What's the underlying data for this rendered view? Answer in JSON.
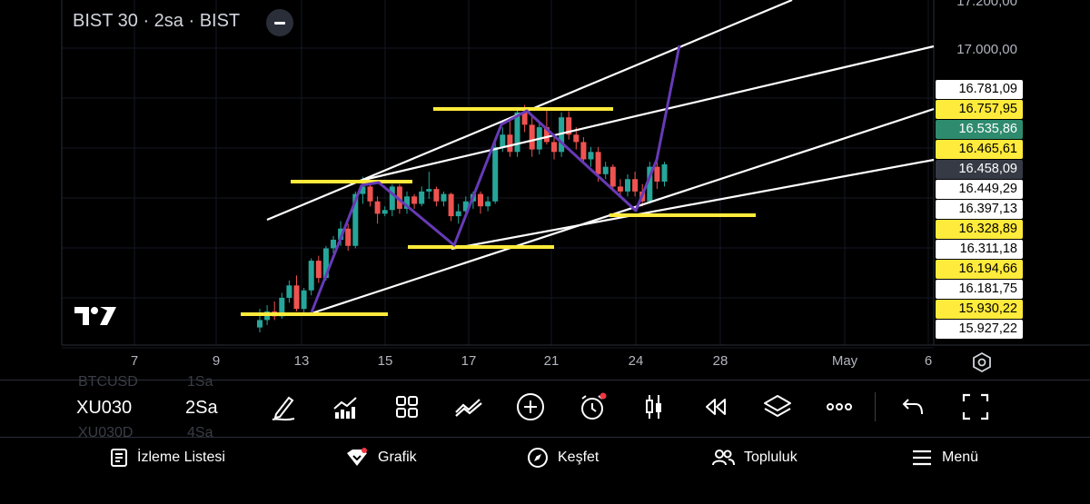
{
  "header": {
    "title": "BIST 30 · 2sa · BIST"
  },
  "price_axis": {
    "top_cut": "17.200,00",
    "level_17000": "17.000,00",
    "labels": [
      {
        "text": "16.781,09",
        "style": "white"
      },
      {
        "text": "16.757,95",
        "style": "yellow"
      },
      {
        "text": "16.535,86",
        "style": "green"
      },
      {
        "text": "16.465,61",
        "style": "yellow"
      },
      {
        "text": "16.458,09",
        "style": "dark"
      },
      {
        "text": "16.449,29",
        "style": "white"
      },
      {
        "text": "16.397,13",
        "style": "white"
      },
      {
        "text": "16.328,89",
        "style": "yellow"
      },
      {
        "text": "16.311,18",
        "style": "white"
      },
      {
        "text": "16.194,66",
        "style": "yellow"
      },
      {
        "text": "16.181,75",
        "style": "white"
      },
      {
        "text": "15.930,22",
        "style": "yellow"
      },
      {
        "text": "15.927,22",
        "style": "white"
      }
    ]
  },
  "time_axis": [
    "7",
    "9",
    "13",
    "15",
    "17",
    "21",
    "24",
    "28",
    "May",
    "6"
  ],
  "toolbar": {
    "symbol": "XU030",
    "interval": "2Sa",
    "ghost_top_symbol": "BTCUSD",
    "ghost_top_interval": "1Sa",
    "ghost_bottom_symbol": "XU030D",
    "ghost_bottom_interval": "4Sa",
    "icons": [
      "draw-icon",
      "indicators-icon",
      "layout-icon",
      "compare-icon",
      "add-icon",
      "alert-icon",
      "bar-style-icon",
      "replay-icon",
      "layers-icon",
      "more-icon",
      "undo-icon",
      "fullscreen-icon"
    ]
  },
  "bottom_nav": [
    {
      "label": "İzleme Listesi",
      "icon": "watchlist-icon"
    },
    {
      "label": "Grafik",
      "icon": "chart-icon"
    },
    {
      "label": "Keşfet",
      "icon": "explore-icon"
    },
    {
      "label": "Topluluk",
      "icon": "community-icon"
    },
    {
      "label": "Menü",
      "icon": "menu-icon"
    }
  ],
  "colors": {
    "background": "#000000",
    "up_candle": "#26a69a",
    "down_candle": "#ef5350",
    "trendline": "#ffffff",
    "level_line": "#ffeb3b",
    "path_line": "#673ab7",
    "green_label": "#2e8b6e",
    "yellow_label": "#ffeb3b"
  },
  "chart_data": {
    "type": "candlestick",
    "candles": [
      {
        "o": 15870,
        "h": 15945,
        "l": 15850,
        "c": 15900,
        "up": true
      },
      {
        "o": 15900,
        "h": 15960,
        "l": 15880,
        "c": 15935,
        "up": true
      },
      {
        "o": 15935,
        "h": 15975,
        "l": 15900,
        "c": 15915,
        "up": false
      },
      {
        "o": 15915,
        "h": 16010,
        "l": 15905,
        "c": 15990,
        "up": true
      },
      {
        "o": 15990,
        "h": 16060,
        "l": 15970,
        "c": 16040,
        "up": true
      },
      {
        "o": 16040,
        "h": 16080,
        "l": 15935,
        "c": 15945,
        "up": false
      },
      {
        "o": 15945,
        "h": 16030,
        "l": 15930,
        "c": 16020,
        "up": true
      },
      {
        "o": 16020,
        "h": 16150,
        "l": 16000,
        "c": 16140,
        "up": true
      },
      {
        "o": 16140,
        "h": 16160,
        "l": 16050,
        "c": 16070,
        "up": false
      },
      {
        "o": 16070,
        "h": 16200,
        "l": 16060,
        "c": 16190,
        "up": true
      },
      {
        "o": 16190,
        "h": 16240,
        "l": 16170,
        "c": 16225,
        "up": true
      },
      {
        "o": 16225,
        "h": 16300,
        "l": 16200,
        "c": 16270,
        "up": true
      },
      {
        "o": 16270,
        "h": 16290,
        "l": 16180,
        "c": 16200,
        "up": false
      },
      {
        "o": 16200,
        "h": 16420,
        "l": 16190,
        "c": 16410,
        "up": true
      },
      {
        "o": 16410,
        "h": 16480,
        "l": 16370,
        "c": 16440,
        "up": true
      },
      {
        "o": 16440,
        "h": 16460,
        "l": 16360,
        "c": 16380,
        "up": false
      },
      {
        "o": 16380,
        "h": 16400,
        "l": 16290,
        "c": 16330,
        "up": false
      },
      {
        "o": 16330,
        "h": 16360,
        "l": 16320,
        "c": 16345,
        "up": true
      },
      {
        "o": 16345,
        "h": 16450,
        "l": 16320,
        "c": 16440,
        "up": true
      },
      {
        "o": 16440,
        "h": 16450,
        "l": 16330,
        "c": 16350,
        "up": false
      },
      {
        "o": 16350,
        "h": 16420,
        "l": 16330,
        "c": 16400,
        "up": true
      },
      {
        "o": 16400,
        "h": 16410,
        "l": 16350,
        "c": 16370,
        "up": false
      },
      {
        "o": 16370,
        "h": 16440,
        "l": 16360,
        "c": 16420,
        "up": true
      },
      {
        "o": 16420,
        "h": 16500,
        "l": 16390,
        "c": 16430,
        "up": true
      },
      {
        "o": 16430,
        "h": 16440,
        "l": 16360,
        "c": 16380,
        "up": false
      },
      {
        "o": 16380,
        "h": 16420,
        "l": 16360,
        "c": 16410,
        "up": true
      },
      {
        "o": 16410,
        "h": 16415,
        "l": 16300,
        "c": 16320,
        "up": false
      },
      {
        "o": 16320,
        "h": 16370,
        "l": 16290,
        "c": 16340,
        "up": true
      },
      {
        "o": 16340,
        "h": 16400,
        "l": 16320,
        "c": 16380,
        "up": true
      },
      {
        "o": 16380,
        "h": 16420,
        "l": 16350,
        "c": 16410,
        "up": true
      },
      {
        "o": 16410,
        "h": 16420,
        "l": 16330,
        "c": 16360,
        "up": false
      },
      {
        "o": 16360,
        "h": 16400,
        "l": 16340,
        "c": 16380,
        "up": true
      },
      {
        "o": 16380,
        "h": 16620,
        "l": 16370,
        "c": 16600,
        "up": true
      },
      {
        "o": 16600,
        "h": 16680,
        "l": 16580,
        "c": 16650,
        "up": true
      },
      {
        "o": 16650,
        "h": 16720,
        "l": 16560,
        "c": 16580,
        "up": false
      },
      {
        "o": 16580,
        "h": 16760,
        "l": 16560,
        "c": 16740,
        "up": true
      },
      {
        "o": 16740,
        "h": 16770,
        "l": 16660,
        "c": 16690,
        "up": false
      },
      {
        "o": 16690,
        "h": 16730,
        "l": 16560,
        "c": 16590,
        "up": false
      },
      {
        "o": 16590,
        "h": 16700,
        "l": 16570,
        "c": 16680,
        "up": true
      },
      {
        "o": 16680,
        "h": 16760,
        "l": 16610,
        "c": 16620,
        "up": false
      },
      {
        "o": 16620,
        "h": 16650,
        "l": 16550,
        "c": 16580,
        "up": false
      },
      {
        "o": 16580,
        "h": 16740,
        "l": 16560,
        "c": 16720,
        "up": true
      },
      {
        "o": 16720,
        "h": 16745,
        "l": 16630,
        "c": 16650,
        "up": false
      },
      {
        "o": 16650,
        "h": 16680,
        "l": 16590,
        "c": 16620,
        "up": false
      },
      {
        "o": 16620,
        "h": 16640,
        "l": 16530,
        "c": 16550,
        "up": false
      },
      {
        "o": 16550,
        "h": 16600,
        "l": 16520,
        "c": 16580,
        "up": true
      },
      {
        "o": 16580,
        "h": 16600,
        "l": 16460,
        "c": 16490,
        "up": false
      },
      {
        "o": 16490,
        "h": 16540,
        "l": 16470,
        "c": 16520,
        "up": true
      },
      {
        "o": 16520,
        "h": 16530,
        "l": 16420,
        "c": 16440,
        "up": false
      },
      {
        "o": 16440,
        "h": 16470,
        "l": 16400,
        "c": 16420,
        "up": false
      },
      {
        "o": 16420,
        "h": 16490,
        "l": 16400,
        "c": 16470,
        "up": true
      },
      {
        "o": 16470,
        "h": 16500,
        "l": 16400,
        "c": 16420,
        "up": false
      },
      {
        "o": 16420,
        "h": 16450,
        "l": 16360,
        "c": 16380,
        "up": false
      },
      {
        "o": 16380,
        "h": 16540,
        "l": 16370,
        "c": 16520,
        "up": true
      },
      {
        "o": 16520,
        "h": 16540,
        "l": 16430,
        "c": 16460,
        "up": false
      },
      {
        "o": 16460,
        "h": 16540,
        "l": 16440,
        "c": 16530,
        "up": true
      }
    ]
  }
}
